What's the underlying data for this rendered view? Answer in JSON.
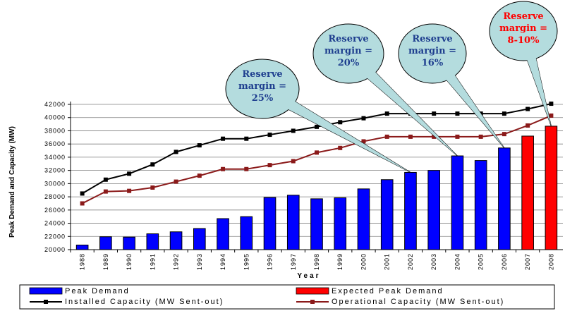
{
  "chart_data": {
    "type": "bar",
    "categories": [
      "1988",
      "1989",
      "1990",
      "1991",
      "1992",
      "1993",
      "1994",
      "1995",
      "1996",
      "1997",
      "1998",
      "1999",
      "2000",
      "2001",
      "2002",
      "2003",
      "2004",
      "2005",
      "2006",
      "2007",
      "2008"
    ],
    "series": [
      {
        "name": "Peak Demand",
        "kind": "bar",
        "color": "#0000FF",
        "values": [
          20700,
          21950,
          21900,
          22400,
          22700,
          23200,
          24700,
          25000,
          27900,
          28250,
          27700,
          27850,
          29200,
          30600,
          31700,
          32000,
          34200,
          33500,
          35400,
          null,
          null
        ]
      },
      {
        "name": "Expected Peak Demand",
        "kind": "bar",
        "color": "#FF0000",
        "values": [
          null,
          null,
          null,
          null,
          null,
          null,
          null,
          null,
          null,
          null,
          null,
          null,
          null,
          null,
          null,
          null,
          null,
          null,
          null,
          37200,
          38700
        ]
      },
      {
        "name": "Installed Capacity (MW Sent-out)",
        "kind": "line",
        "color": "#000000",
        "values": [
          28500,
          30600,
          31500,
          32900,
          34800,
          35800,
          36800,
          36800,
          37400,
          38000,
          38600,
          39300,
          39900,
          40600,
          40600,
          40600,
          40600,
          40600,
          40600,
          41300,
          42100
        ]
      },
      {
        "name": "Operational Capacity (MW Sent-out)",
        "kind": "line",
        "color": "#8B1A1A",
        "values": [
          27000,
          28800,
          28900,
          29400,
          30300,
          31200,
          32200,
          32200,
          32800,
          33400,
          34700,
          35400,
          36400,
          37100,
          37100,
          37100,
          37100,
          37100,
          37500,
          38800,
          40300
        ]
      }
    ],
    "xlabel": "Year",
    "ylabel": "Peak Demand and Capacity (MW)",
    "ylim": [
      20000,
      42000
    ],
    "yticks": [
      20000,
      22000,
      24000,
      26000,
      28000,
      30000,
      32000,
      34000,
      36000,
      38000,
      40000,
      42000
    ],
    "yticklabels": [
      "20000",
      "22000",
      "24000",
      "26000",
      "28000",
      "30000",
      "32000",
      "34000",
      "36000",
      "38000",
      "40000",
      "42000"
    ],
    "grid": true,
    "legend_placement": "bottom",
    "annotations": [
      {
        "lines": [
          "Reserve",
          "margin =",
          "25%"
        ],
        "color": "#1F3F8F",
        "points_to_year": "2002"
      },
      {
        "lines": [
          "Reserve",
          "margin =",
          "20%"
        ],
        "color": "#1F3F8F",
        "points_to_year": "2004"
      },
      {
        "lines": [
          "Reserve",
          "margin =",
          "16%"
        ],
        "color": "#1F3F8F",
        "points_to_year": "2006"
      },
      {
        "lines": [
          "Reserve",
          "margin =",
          "8-10%"
        ],
        "color": "#FF0000",
        "points_to_year": "2008"
      }
    ]
  }
}
